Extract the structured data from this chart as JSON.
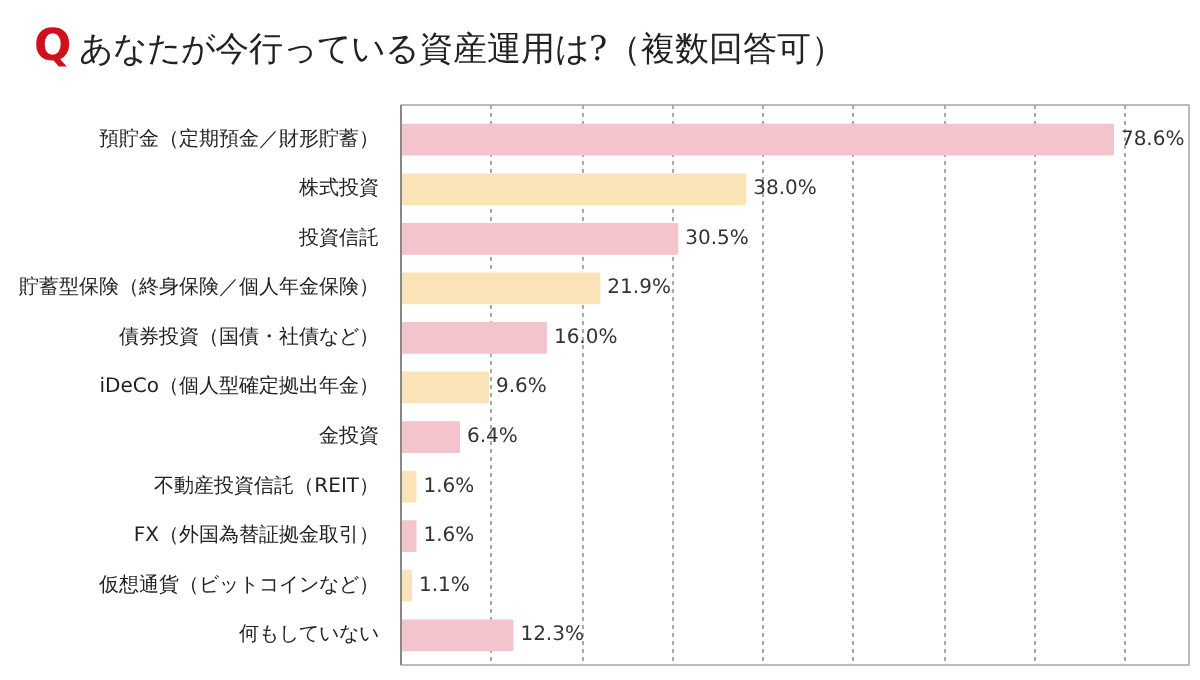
{
  "chart_data": {
    "type": "bar",
    "orientation": "horizontal",
    "title": "Q あなたが今行っている資産運用は?（複数回答可）",
    "categories": [
      "預貯金（定期預金／財形貯蓄）",
      "株式投資",
      "投資信託",
      "貯蓄型保険（終身保険／個人年金保険）",
      "債券投資（国債・社債など）",
      "iDeCo（個人型確定拠出年金）",
      "金投資",
      "不動産投資信託（REIT）",
      "FX（外国為替証拠金取引）",
      "仮想通貨（ビットコインなど）",
      "何もしていない"
    ],
    "values": [
      78.6,
      38.0,
      30.5,
      21.9,
      16.0,
      9.6,
      6.4,
      1.6,
      1.6,
      1.1,
      12.3
    ],
    "value_labels": [
      "78.6%",
      "38.0%",
      "30.5%",
      "21.9%",
      "16.0%",
      "9.6%",
      "6.4%",
      "1.6%",
      "1.6%",
      "1.1%",
      "12.3%"
    ],
    "colors": [
      "#f4c3cc",
      "#fbe3b8",
      "#f4c3cc",
      "#fbe3b8",
      "#f4c3cc",
      "#fbe3b8",
      "#f4c3cc",
      "#fbe3b8",
      "#f4c3cc",
      "#fbe3b8",
      "#f4c3cc"
    ],
    "xlim": [
      0,
      87
    ],
    "xticks": [
      {
        "value": 10,
        "label": null
      },
      {
        "value": 20,
        "label": null
      },
      {
        "value": 30,
        "label": null
      },
      {
        "value": 40,
        "label": null
      },
      {
        "value": 50,
        "label": null
      },
      {
        "value": 60,
        "label": null
      },
      {
        "value": 70,
        "label": null
      },
      {
        "value": 80,
        "label": null
      }
    ],
    "grid": "x",
    "tick_labels": "y"
  }
}
